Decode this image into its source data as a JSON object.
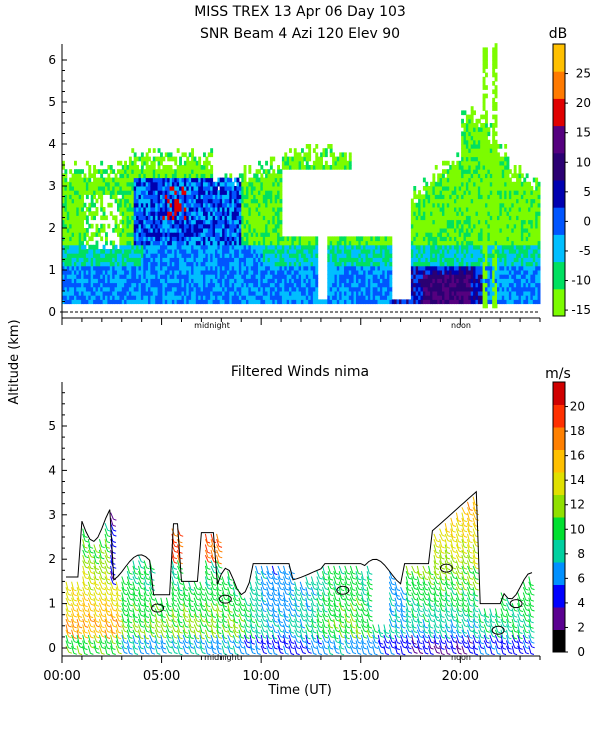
{
  "header": {
    "title_line1": "MISS TREX    13 Apr 06 Day 103",
    "title_line2": "SNR Beam 4 Azi 120 Elev 90"
  },
  "shared": {
    "ylabel": "Altitude (km)",
    "xlabel": "Time (UT)",
    "x_ticks": [
      "00:00",
      "05:00",
      "10:00",
      "15:00",
      "20:00"
    ],
    "markers": [
      "midnight",
      "noon"
    ]
  },
  "chart_data": [
    {
      "type": "heatmap",
      "title": "",
      "units": "dB",
      "xlim": [
        0,
        24
      ],
      "ylim": [
        0,
        6.4
      ],
      "y_ticks": [
        0,
        1,
        2,
        3,
        4,
        5,
        6
      ],
      "marker_times": [
        7,
        19.7
      ],
      "colorbar": {
        "ticks": [
          -15,
          -10,
          -5,
          0,
          5,
          10,
          15,
          20,
          25
        ],
        "range": [
          -16,
          30
        ],
        "colors": [
          "#7cfc00",
          "#00e060",
          "#00bfff",
          "#0055ff",
          "#0000b0",
          "#2b0073",
          "#55007f",
          "#e00000",
          "#ff7a00",
          "#ffc000"
        ]
      }
    },
    {
      "type": "scatter",
      "title": "Filtered Winds nima",
      "units": "m/s",
      "xlim": [
        0,
        24
      ],
      "ylim": [
        0,
        6
      ],
      "y_ticks": [
        0,
        1,
        2,
        3,
        4,
        5
      ],
      "marker_times": [
        7,
        19.7
      ],
      "colorbar": {
        "ticks": [
          0,
          2,
          4,
          6,
          8,
          10,
          12,
          14,
          16,
          18,
          20
        ],
        "range": [
          0,
          22
        ],
        "colors": [
          "#000000",
          "#5a0090",
          "#0000ff",
          "#0090ff",
          "#00d0a0",
          "#00e030",
          "#90e000",
          "#e0e000",
          "#ffc000",
          "#ff8000",
          "#ff3000",
          "#d00000"
        ]
      }
    }
  ]
}
